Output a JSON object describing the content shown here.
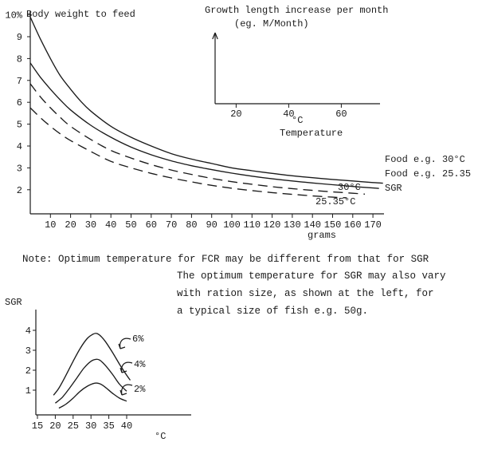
{
  "page": {
    "background": "#ffffff",
    "ink": "#1b1b1b",
    "note": "Note: Optimum temperature for FCR may be different from that for SGR",
    "paragraph_lines": [
      "The optimum temperature for SGR may also vary",
      "with ration size, as shown at the left, for",
      "a typical size of fish e.g. 50g."
    ]
  },
  "chart_data": [
    {
      "id": "fcr-vs-fish-size",
      "type": "line",
      "title": "Body weight to feed",
      "ylabel": "% Body weight to feed",
      "xlabel": "grams",
      "xlim": [
        0,
        175
      ],
      "ylim": [
        1,
        10.5
      ],
      "grid": false,
      "legend_position": "right",
      "xticks": [
        10,
        20,
        30,
        40,
        50,
        60,
        70,
        80,
        90,
        100,
        110,
        120,
        130,
        140,
        150,
        160,
        170
      ],
      "ytick_values": [
        10,
        9,
        8,
        7,
        6,
        5,
        4,
        3,
        2
      ],
      "ytick_labels": [
        "10%",
        "9",
        "8",
        "7",
        "6",
        "5",
        "4",
        "3",
        "2"
      ],
      "sgr_group_label": "SGR",
      "series": [
        {
          "name": "Food e.g. 30°C",
          "style": "solid",
          "x": [
            0,
            5,
            10,
            15,
            20,
            25,
            30,
            40,
            50,
            60,
            70,
            80,
            90,
            100,
            110,
            120,
            130,
            140,
            150,
            160,
            170,
            175
          ],
          "y": [
            9.9,
            8.9,
            8.0,
            7.2,
            6.6,
            6.05,
            5.6,
            4.9,
            4.4,
            4.0,
            3.65,
            3.4,
            3.2,
            3.0,
            2.87,
            2.75,
            2.64,
            2.55,
            2.47,
            2.4,
            2.33,
            2.3
          ]
        },
        {
          "name": "Food e.g. 25.35",
          "style": "solid",
          "x": [
            0,
            5,
            10,
            15,
            20,
            30,
            40,
            50,
            60,
            70,
            80,
            90,
            100,
            110,
            120,
            130,
            140,
            150,
            160,
            170,
            173
          ],
          "y": [
            7.8,
            7.15,
            6.6,
            6.1,
            5.65,
            4.95,
            4.4,
            3.95,
            3.6,
            3.32,
            3.1,
            2.92,
            2.76,
            2.62,
            2.5,
            2.4,
            2.31,
            2.23,
            2.15,
            2.08,
            2.06
          ]
        },
        {
          "name": "30°C",
          "group": "SGR",
          "style": "dashed",
          "x": [
            0,
            5,
            10,
            15,
            20,
            30,
            40,
            50,
            60,
            70,
            80,
            90,
            100,
            110,
            120,
            130,
            140,
            150,
            160,
            166
          ],
          "y": [
            6.85,
            6.25,
            5.75,
            5.3,
            4.9,
            4.3,
            3.8,
            3.45,
            3.15,
            2.9,
            2.7,
            2.52,
            2.37,
            2.25,
            2.14,
            2.05,
            1.97,
            1.9,
            1.84,
            1.8
          ]
        },
        {
          "name": "25.35°C",
          "group": "SGR",
          "style": "dashed",
          "x": [
            0,
            5,
            10,
            15,
            20,
            30,
            40,
            50,
            60,
            70,
            80,
            90,
            100,
            110,
            120,
            130,
            140,
            150,
            157
          ],
          "y": [
            5.75,
            5.3,
            4.9,
            4.55,
            4.25,
            3.75,
            3.3,
            3.0,
            2.75,
            2.54,
            2.36,
            2.2,
            2.07,
            1.96,
            1.87,
            1.79,
            1.72,
            1.66,
            1.63
          ]
        }
      ]
    },
    {
      "id": "growth-vs-temperature-inset",
      "type": "axes-only",
      "title_lines": [
        "Growth length increase per month",
        "(eg. M/Month)"
      ],
      "xticks": [
        20,
        40,
        60
      ],
      "xlabel_lines": [
        "°C",
        "Temperature"
      ],
      "series": []
    },
    {
      "id": "sgr-vs-temperature-by-ration",
      "type": "line",
      "ylabel": "SGR",
      "xlabel": "°C",
      "xlim": [
        15,
        47
      ],
      "ylim": [
        0,
        4.6
      ],
      "grid": false,
      "xticks": [
        15,
        20,
        25,
        30,
        35,
        40
      ],
      "ytick_values": [
        4,
        3,
        2,
        1
      ],
      "ytick_labels": [
        "4",
        "3",
        "2",
        "1"
      ],
      "series": [
        {
          "name": "6%",
          "style": "solid",
          "x": [
            19.5,
            21,
            23,
            25,
            27,
            29,
            30.5,
            31.5,
            32.5,
            34,
            36,
            38,
            40,
            41
          ],
          "y": [
            0.75,
            1.1,
            1.75,
            2.45,
            3.1,
            3.6,
            3.8,
            3.85,
            3.75,
            3.45,
            2.9,
            2.3,
            1.75,
            1.5
          ]
        },
        {
          "name": "4%",
          "style": "solid",
          "x": [
            20,
            22,
            24,
            26,
            28,
            30,
            31.5,
            32.5,
            34,
            36,
            38,
            40
          ],
          "y": [
            0.35,
            0.65,
            1.1,
            1.6,
            2.1,
            2.45,
            2.55,
            2.5,
            2.25,
            1.8,
            1.3,
            0.95
          ]
        },
        {
          "name": "2%",
          "style": "solid",
          "x": [
            21,
            23,
            25,
            27,
            29,
            31,
            32.5,
            34,
            36,
            38,
            40
          ],
          "y": [
            0.1,
            0.3,
            0.6,
            0.95,
            1.2,
            1.35,
            1.32,
            1.15,
            0.85,
            0.6,
            0.45
          ]
        }
      ]
    }
  ]
}
